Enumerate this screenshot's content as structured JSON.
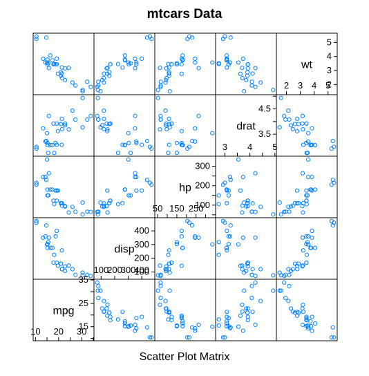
{
  "title": "mtcars Data",
  "xlabel": "Scatter Plot Matrix",
  "colors": {
    "point": "#0080ff",
    "frame": "#000000"
  },
  "chart_data": {
    "type": "scatter",
    "matrix": true,
    "title": "mtcars Data",
    "xlabel": "Scatter Plot Matrix",
    "variables": [
      "mpg",
      "disp",
      "hp",
      "drat",
      "wt"
    ],
    "diagonal": [
      {
        "name": "mpg",
        "range": [
          10.4,
          33.9
        ],
        "ticks": [
          10,
          15,
          20,
          25,
          30,
          35
        ]
      },
      {
        "name": "disp",
        "range": [
          71.1,
          472
        ],
        "ticks": [
          100,
          200,
          300,
          400
        ]
      },
      {
        "name": "hp",
        "range": [
          52,
          335
        ],
        "ticks": [
          50,
          100,
          150,
          200,
          250,
          300
        ]
      },
      {
        "name": "drat",
        "range": [
          2.76,
          4.93
        ],
        "ticks": [
          3.0,
          3.5,
          4.0,
          4.5,
          5.0
        ]
      },
      {
        "name": "wt",
        "range": [
          1.513,
          5.424
        ],
        "ticks": [
          2,
          3,
          4,
          5
        ]
      }
    ],
    "data": {
      "mpg": [
        21.0,
        21.0,
        22.8,
        21.4,
        18.7,
        18.1,
        14.3,
        24.4,
        22.8,
        19.2,
        17.8,
        16.4,
        17.3,
        15.2,
        10.4,
        10.4,
        14.7,
        32.4,
        30.4,
        33.9,
        21.5,
        15.5,
        15.2,
        13.3,
        19.2,
        27.3,
        26.0,
        30.4,
        15.8,
        19.7,
        15.0,
        21.4
      ],
      "disp": [
        160,
        160,
        108,
        258,
        360,
        225,
        360,
        146.7,
        140.8,
        167.6,
        167.6,
        275.8,
        275.8,
        275.8,
        472,
        460,
        440,
        78.7,
        75.7,
        71.1,
        120.1,
        318,
        304,
        350,
        400,
        79,
        120.3,
        95.1,
        351,
        145,
        301,
        121
      ],
      "hp": [
        110,
        110,
        93,
        110,
        175,
        105,
        245,
        62,
        95,
        123,
        123,
        180,
        180,
        180,
        205,
        215,
        230,
        66,
        52,
        65,
        97,
        150,
        150,
        245,
        175,
        66,
        91,
        113,
        264,
        175,
        335,
        109
      ],
      "drat": [
        3.9,
        3.9,
        3.85,
        3.08,
        3.15,
        2.76,
        3.21,
        3.69,
        3.92,
        3.92,
        3.92,
        3.07,
        3.07,
        3.07,
        2.93,
        3.0,
        3.23,
        4.08,
        4.93,
        4.22,
        3.7,
        2.76,
        3.15,
        3.73,
        3.08,
        4.08,
        4.43,
        3.77,
        4.22,
        3.62,
        3.54,
        4.11
      ],
      "wt": [
        2.62,
        2.875,
        2.32,
        3.215,
        3.44,
        3.46,
        3.57,
        3.19,
        3.15,
        3.44,
        3.44,
        4.07,
        3.73,
        3.78,
        5.25,
        5.424,
        5.345,
        2.2,
        1.615,
        1.835,
        2.465,
        3.52,
        3.435,
        3.84,
        3.845,
        1.935,
        2.14,
        1.513,
        3.17,
        2.77,
        3.57,
        2.78
      ]
    }
  }
}
